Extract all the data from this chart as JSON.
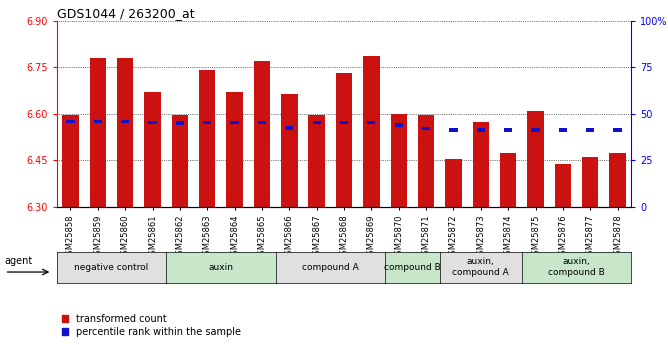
{
  "title": "GDS1044 / 263200_at",
  "samples": [
    "GSM25858",
    "GSM25859",
    "GSM25860",
    "GSM25861",
    "GSM25862",
    "GSM25863",
    "GSM25864",
    "GSM25865",
    "GSM25866",
    "GSM25867",
    "GSM25868",
    "GSM25869",
    "GSM25870",
    "GSM25871",
    "GSM25872",
    "GSM25873",
    "GSM25874",
    "GSM25875",
    "GSM25876",
    "GSM25877",
    "GSM25878"
  ],
  "bar_values": [
    6.595,
    6.78,
    6.78,
    6.67,
    6.595,
    6.74,
    6.67,
    6.77,
    6.665,
    6.595,
    6.73,
    6.785,
    6.6,
    6.595,
    6.455,
    6.575,
    6.475,
    6.61,
    6.44,
    6.46,
    6.475
  ],
  "percentile_values": [
    6.575,
    6.575,
    6.575,
    6.572,
    6.571,
    6.572,
    6.572,
    6.572,
    6.555,
    6.572,
    6.572,
    6.572,
    6.565,
    6.553,
    6.548,
    6.548,
    6.548,
    6.548,
    6.548,
    6.548,
    6.548
  ],
  "ymin": 6.3,
  "ymax": 6.9,
  "yticks": [
    6.3,
    6.45,
    6.6,
    6.75,
    6.9
  ],
  "right_yticks": [
    0,
    25,
    50,
    75,
    100
  ],
  "bar_color": "#cc1111",
  "percentile_color": "#1111cc",
  "bar_width": 0.6,
  "groups": [
    {
      "label": "negative control",
      "start": 0,
      "end": 3,
      "color": "#e0e0e0"
    },
    {
      "label": "auxin",
      "start": 4,
      "end": 7,
      "color": "#c8e6c9"
    },
    {
      "label": "compound A",
      "start": 8,
      "end": 11,
      "color": "#e0e0e0"
    },
    {
      "label": "compound B",
      "start": 12,
      "end": 13,
      "color": "#c8e6c9"
    },
    {
      "label": "auxin,\ncompound A",
      "start": 14,
      "end": 16,
      "color": "#e0e0e0"
    },
    {
      "label": "auxin,\ncompound B",
      "start": 17,
      "end": 20,
      "color": "#c8e6c9"
    }
  ],
  "legend_entries": [
    "transformed count",
    "percentile rank within the sample"
  ],
  "agent_label": "agent"
}
